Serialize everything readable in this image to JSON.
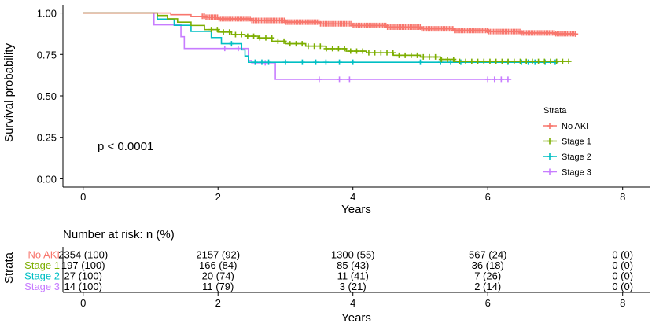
{
  "chart_data": [
    {
      "type": "line",
      "subtype": "kaplan-meier",
      "title": "",
      "xlabel": "Years",
      "ylabel": "Survival probability",
      "xlim": [
        -0.3,
        8.4
      ],
      "ylim": [
        -0.05,
        1.05
      ],
      "xticks": [
        0,
        2,
        4,
        6,
        8
      ],
      "xtick_labels": [
        "0",
        "2",
        "4",
        "6",
        "8"
      ],
      "yticks": [
        0,
        0.25,
        0.5,
        0.75,
        1.0
      ],
      "ytick_labels": [
        "0.00",
        "0.25",
        "0.50",
        "0.75",
        "1.00"
      ],
      "grid": false,
      "annotation": "p < 0.0001",
      "legend": {
        "title": "Strata",
        "position": "right",
        "entries": [
          "No AKI",
          "Stage 1",
          "Stage 2",
          "Stage 3"
        ]
      },
      "series": [
        {
          "name": "No AKI",
          "color": "#F8766D",
          "steps": [
            [
              0,
              1.0
            ],
            [
              1.0,
              1.0
            ],
            [
              1.3,
              0.99
            ],
            [
              1.6,
              0.98
            ],
            [
              1.8,
              0.975
            ],
            [
              2.0,
              0.965
            ],
            [
              2.5,
              0.955
            ],
            [
              3.0,
              0.945
            ],
            [
              3.5,
              0.935
            ],
            [
              4.0,
              0.925
            ],
            [
              4.5,
              0.915
            ],
            [
              5.0,
              0.905
            ],
            [
              5.5,
              0.895
            ],
            [
              6.0,
              0.888
            ],
            [
              6.5,
              0.88
            ],
            [
              7.0,
              0.875
            ],
            [
              7.3,
              0.873
            ]
          ],
          "censor_start": 1.75,
          "censor_end": 7.3,
          "censor_count": 230
        },
        {
          "name": "Stage 1",
          "color": "#7CAE00",
          "steps": [
            [
              0,
              1.0
            ],
            [
              1.0,
              1.0
            ],
            [
              1.1,
              0.985
            ],
            [
              1.25,
              0.965
            ],
            [
              1.4,
              0.945
            ],
            [
              1.6,
              0.925
            ],
            [
              1.8,
              0.9
            ],
            [
              2.0,
              0.885
            ],
            [
              2.2,
              0.87
            ],
            [
              2.4,
              0.86
            ],
            [
              2.6,
              0.85
            ],
            [
              2.8,
              0.83
            ],
            [
              3.0,
              0.815
            ],
            [
              3.3,
              0.8
            ],
            [
              3.6,
              0.785
            ],
            [
              3.9,
              0.77
            ],
            [
              4.2,
              0.76
            ],
            [
              4.6,
              0.745
            ],
            [
              5.0,
              0.735
            ],
            [
              5.3,
              0.72
            ],
            [
              5.5,
              0.708
            ],
            [
              7.2,
              0.708
            ]
          ],
          "censor_start": 1.9,
          "censor_end": 7.2,
          "censor_count": 60
        },
        {
          "name": "Stage 2",
          "color": "#00BFC4",
          "steps": [
            [
              0,
              1.0
            ],
            [
              1.05,
              1.0
            ],
            [
              1.1,
              0.963
            ],
            [
              1.35,
              0.926
            ],
            [
              1.6,
              0.889
            ],
            [
              1.9,
              0.852
            ],
            [
              2.05,
              0.815
            ],
            [
              2.35,
              0.778
            ],
            [
              2.4,
              0.741
            ],
            [
              2.45,
              0.703
            ],
            [
              7.05,
              0.703
            ]
          ],
          "censors": [
            2.2,
            2.55,
            2.65,
            2.75,
            3.0,
            3.25,
            3.45,
            3.6,
            3.8,
            4.0,
            5.0,
            5.3,
            5.45,
            5.6,
            6.3,
            6.5,
            6.6,
            6.7,
            6.85,
            7.0
          ]
        },
        {
          "name": "Stage 3",
          "color": "#C77CFF",
          "steps": [
            [
              0,
              1.0
            ],
            [
              1.0,
              1.0
            ],
            [
              1.05,
              0.929
            ],
            [
              1.45,
              0.857
            ],
            [
              1.5,
              0.786
            ],
            [
              2.45,
              0.714
            ],
            [
              2.5,
              0.7
            ],
            [
              2.8,
              0.7
            ],
            [
              2.85,
              0.6
            ],
            [
              6.35,
              0.6
            ]
          ],
          "censors": [
            2.1,
            2.3,
            2.7,
            3.5,
            3.8,
            3.95,
            6.0,
            6.1,
            6.2,
            6.3
          ]
        }
      ]
    },
    {
      "type": "table",
      "title": "Number at risk: n (%)",
      "xlabel": "Years",
      "ylabel": "Strata",
      "xticks": [
        0,
        2,
        4,
        6,
        8
      ],
      "xtick_labels": [
        "0",
        "2",
        "4",
        "6",
        "8"
      ],
      "rows": [
        {
          "name": "No AKI",
          "color": "#F8766D",
          "cells": [
            "2354 (100)",
            "2157 (92)",
            "1300 (55)",
            "567 (24)",
            "0 (0)"
          ]
        },
        {
          "name": "Stage 1",
          "color": "#7CAE00",
          "cells": [
            "197 (100)",
            "166 (84)",
            "85 (43)",
            "36 (18)",
            "0 (0)"
          ]
        },
        {
          "name": "Stage 2",
          "color": "#00BFC4",
          "cells": [
            "27 (100)",
            "20 (74)",
            "11 (41)",
            "7 (26)",
            "0 (0)"
          ]
        },
        {
          "name": "Stage 3",
          "color": "#C77CFF",
          "cells": [
            "14 (100)",
            "11 (79)",
            "3 (21)",
            "2 (14)",
            "0 (0)"
          ]
        }
      ]
    }
  ]
}
